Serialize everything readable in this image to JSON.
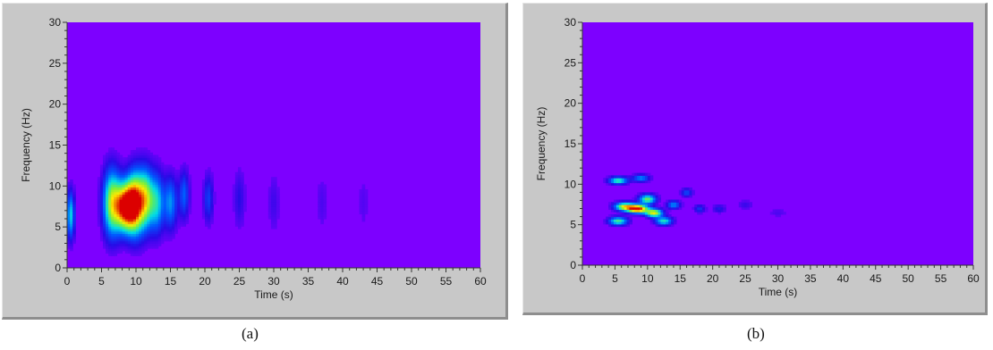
{
  "captions": {
    "a": "(a)",
    "b": "(b)"
  },
  "chart_data": [
    {
      "type": "heatmap",
      "panel": "a",
      "xlabel": "Time (s)",
      "ylabel": "Frequency (Hz)",
      "xlim": [
        0,
        60
      ],
      "ylim": [
        0,
        30
      ],
      "xticks": [
        "0",
        "5",
        "10",
        "15",
        "20",
        "25",
        "30",
        "35",
        "40",
        "45",
        "50",
        "55",
        "60"
      ],
      "yticks": [
        "0",
        "5",
        "10",
        "15",
        "20",
        "25",
        "30"
      ],
      "background_color": "#7d00ff",
      "hot_spots": [
        {
          "t": 0.5,
          "f": 6.5,
          "intensity": 0.45,
          "st": 0.4,
          "sf": 2.0
        },
        {
          "t": 6.5,
          "f": 8.0,
          "intensity": 0.65,
          "st": 0.9,
          "sf": 2.8
        },
        {
          "t": 8.5,
          "f": 7.5,
          "intensity": 1.0,
          "st": 1.0,
          "sf": 2.0
        },
        {
          "t": 10.0,
          "f": 8.0,
          "intensity": 0.85,
          "st": 0.9,
          "sf": 2.6
        },
        {
          "t": 11.5,
          "f": 8.5,
          "intensity": 0.55,
          "st": 0.7,
          "sf": 2.5
        },
        {
          "t": 13.0,
          "f": 8.0,
          "intensity": 0.45,
          "st": 0.7,
          "sf": 2.5
        },
        {
          "t": 15.0,
          "f": 8.0,
          "intensity": 0.35,
          "st": 0.7,
          "sf": 2.2
        },
        {
          "t": 17.0,
          "f": 9.0,
          "intensity": 0.28,
          "st": 0.5,
          "sf": 2.0
        },
        {
          "t": 20.5,
          "f": 8.5,
          "intensity": 0.22,
          "st": 0.5,
          "sf": 2.0
        },
        {
          "t": 25.0,
          "f": 8.5,
          "intensity": 0.12,
          "st": 0.6,
          "sf": 2.5
        },
        {
          "t": 30.0,
          "f": 8.0,
          "intensity": 0.09,
          "st": 0.6,
          "sf": 2.5
        },
        {
          "t": 37.0,
          "f": 8.0,
          "intensity": 0.07,
          "st": 0.6,
          "sf": 2.5
        },
        {
          "t": 43.0,
          "f": 8.0,
          "intensity": 0.06,
          "st": 0.6,
          "sf": 2.5
        }
      ]
    },
    {
      "type": "heatmap",
      "panel": "b",
      "xlabel": "Time (s)",
      "ylabel": "Frequency (Hz)",
      "xlim": [
        0,
        60
      ],
      "ylim": [
        0,
        30
      ],
      "xticks": [
        "0",
        "5",
        "10",
        "15",
        "20",
        "25",
        "30",
        "35",
        "40",
        "45",
        "50",
        "55",
        "60"
      ],
      "yticks": [
        "0",
        "5",
        "10",
        "15",
        "20",
        "25",
        "30"
      ],
      "background_color": "#7d00ff",
      "hot_spots": [
        {
          "t": 5.5,
          "f": 10.5,
          "intensity": 0.55,
          "st": 1.0,
          "sf": 0.3
        },
        {
          "t": 9.0,
          "f": 10.8,
          "intensity": 0.35,
          "st": 0.9,
          "sf": 0.3
        },
        {
          "t": 10.0,
          "f": 8.2,
          "intensity": 0.6,
          "st": 0.9,
          "sf": 0.4
        },
        {
          "t": 6.5,
          "f": 7.3,
          "intensity": 0.7,
          "st": 1.1,
          "sf": 0.35
        },
        {
          "t": 8.5,
          "f": 7.0,
          "intensity": 1.0,
          "st": 1.1,
          "sf": 0.35
        },
        {
          "t": 11.0,
          "f": 6.5,
          "intensity": 0.75,
          "st": 0.9,
          "sf": 0.35
        },
        {
          "t": 5.5,
          "f": 5.5,
          "intensity": 0.55,
          "st": 1.0,
          "sf": 0.35
        },
        {
          "t": 12.5,
          "f": 5.5,
          "intensity": 0.5,
          "st": 0.9,
          "sf": 0.35
        },
        {
          "t": 14.0,
          "f": 7.5,
          "intensity": 0.35,
          "st": 0.7,
          "sf": 0.35
        },
        {
          "t": 16.0,
          "f": 9.0,
          "intensity": 0.25,
          "st": 0.6,
          "sf": 0.35
        },
        {
          "t": 18.0,
          "f": 7.0,
          "intensity": 0.2,
          "st": 0.6,
          "sf": 0.35
        },
        {
          "t": 21.0,
          "f": 7.0,
          "intensity": 0.15,
          "st": 0.7,
          "sf": 0.35
        },
        {
          "t": 25.0,
          "f": 7.5,
          "intensity": 0.1,
          "st": 0.8,
          "sf": 0.4
        },
        {
          "t": 30.0,
          "f": 6.5,
          "intensity": 0.07,
          "st": 1.0,
          "sf": 0.4
        }
      ]
    }
  ]
}
